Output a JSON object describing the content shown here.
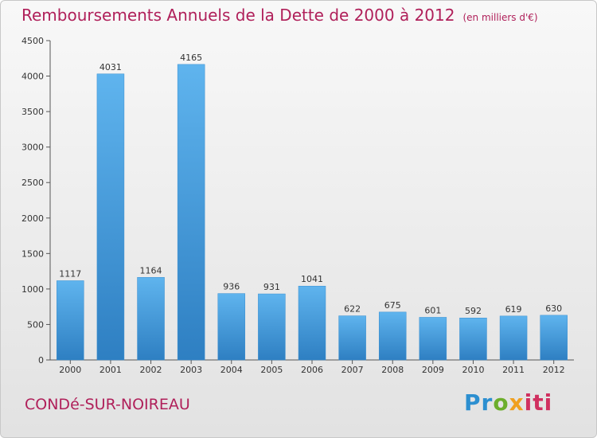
{
  "chart_data": {
    "type": "bar",
    "title": "Remboursements Annuels de la Dette de 2000 à 2012",
    "subtitle": "(en milliers d'€)",
    "categories": [
      "2000",
      "2001",
      "2002",
      "2003",
      "2004",
      "2005",
      "2006",
      "2007",
      "2008",
      "2009",
      "2010",
      "2011",
      "2012"
    ],
    "values": [
      1117,
      4031,
      1164,
      4165,
      936,
      931,
      1041,
      622,
      675,
      601,
      592,
      619,
      630
    ],
    "ylim": [
      0,
      4500
    ],
    "yticks": [
      0,
      500,
      1000,
      1500,
      2000,
      2500,
      3000,
      3500,
      4000,
      4500
    ],
    "xlabel": "",
    "ylabel": "",
    "grid": false,
    "bar_color": "#3f95d6"
  },
  "location": "CONDé-SUR-NOIREAU",
  "logo_text": "Proxiti",
  "colors": {
    "title": "#b0205a",
    "bar_top": "#5fb4ee",
    "bar_bottom": "#2e7fc2",
    "logo": [
      "#2c8fd0",
      "#6cae2c",
      "#f0a020",
      "#d03060"
    ]
  }
}
